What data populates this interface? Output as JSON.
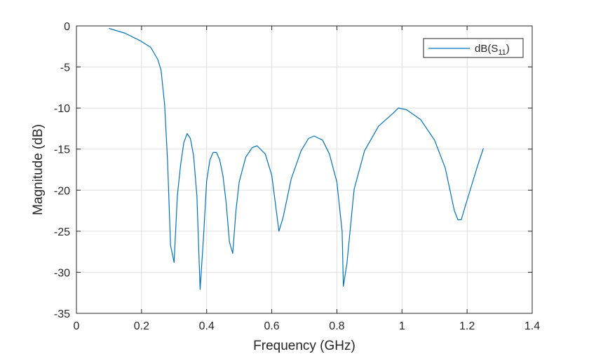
{
  "chart_data": {
    "type": "line",
    "title": "",
    "xlabel": "Frequency (GHz)",
    "ylabel": "Magnitude (dB)",
    "xlim": [
      0,
      1.4
    ],
    "ylim": [
      -35,
      0
    ],
    "xticks": [
      0,
      0.2,
      0.4,
      0.6,
      0.8,
      1,
      1.2,
      1.4
    ],
    "xtick_labels": [
      "0",
      "0.2",
      "0.4",
      "0.6",
      "0.8",
      "1",
      "1.2",
      "1.4"
    ],
    "yticks": [
      0,
      -5,
      -10,
      -15,
      -20,
      -25,
      -30,
      -35
    ],
    "ytick_labels": [
      "0",
      "-5",
      "-10",
      "-15",
      "-20",
      "-25",
      "-30",
      "-35"
    ],
    "grid": true,
    "legend_position": "northeast",
    "series": [
      {
        "name": "dB(S11)",
        "color": "#0072BD",
        "x": [
          0.1,
          0.15,
          0.196,
          0.228,
          0.25,
          0.26,
          0.271,
          0.28,
          0.289,
          0.3,
          0.31,
          0.32,
          0.33,
          0.34,
          0.35,
          0.36,
          0.37,
          0.38,
          0.39,
          0.4,
          0.41,
          0.42,
          0.43,
          0.44,
          0.45,
          0.46,
          0.47,
          0.48,
          0.49,
          0.5,
          0.52,
          0.54,
          0.555,
          0.58,
          0.6,
          0.622,
          0.635,
          0.66,
          0.69,
          0.713,
          0.73,
          0.756,
          0.777,
          0.8,
          0.816,
          0.82,
          0.831,
          0.853,
          0.885,
          0.928,
          0.971,
          0.989,
          1.014,
          1.057,
          1.1,
          1.133,
          1.161,
          1.172,
          1.182,
          1.197,
          1.23,
          1.25
        ],
        "values": [
          -0.3,
          -0.9,
          -1.8,
          -2.6,
          -4.1,
          -5.4,
          -9.6,
          -16.5,
          -26.7,
          -28.8,
          -20.7,
          -16.9,
          -14.2,
          -13.1,
          -13.7,
          -15.8,
          -20.7,
          -32.1,
          -25.9,
          -18.9,
          -16.3,
          -15.4,
          -15.4,
          -16.3,
          -18.2,
          -21.6,
          -26.3,
          -27.7,
          -22.5,
          -19.0,
          -16.0,
          -14.8,
          -14.6,
          -15.6,
          -18.2,
          -25.0,
          -23.3,
          -18.6,
          -15.2,
          -13.7,
          -13.4,
          -13.9,
          -15.6,
          -19.0,
          -25.0,
          -31.7,
          -28.9,
          -19.9,
          -15.2,
          -12.2,
          -10.7,
          -10.0,
          -10.2,
          -11.4,
          -13.9,
          -17.3,
          -22.5,
          -23.6,
          -23.6,
          -21.6,
          -17.3,
          -14.9
        ]
      }
    ]
  },
  "legend": {
    "label_main": "dB(S",
    "label_sub": "11",
    "label_close": ")"
  },
  "colors": {
    "line": "#0072BD",
    "grid": "#dfdfdf",
    "axis": "#262626",
    "background": "#ffffff"
  }
}
